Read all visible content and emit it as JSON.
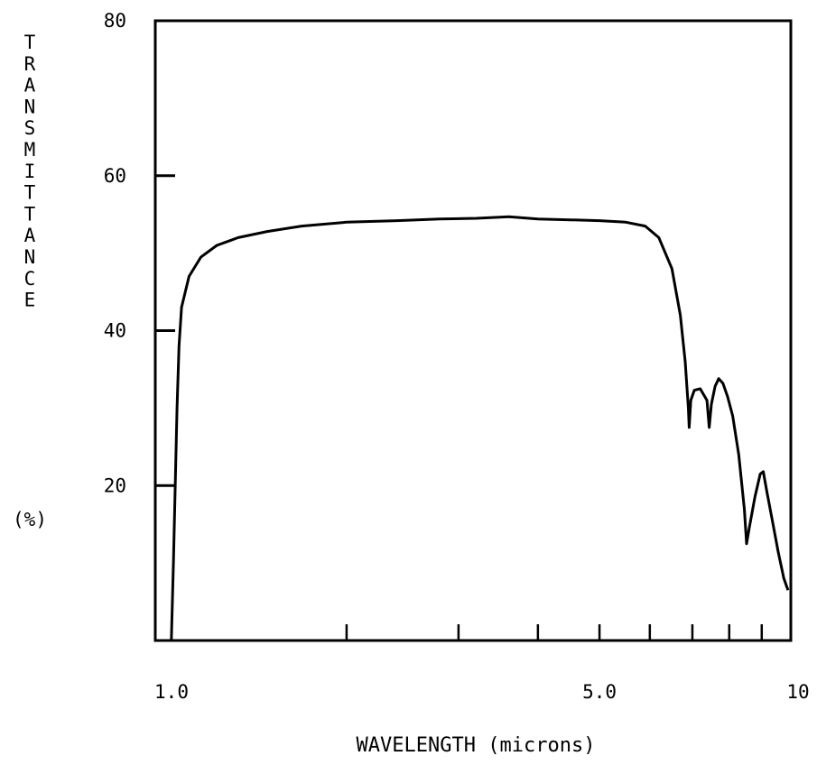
{
  "chart_data": {
    "type": "line",
    "title": "",
    "xlabel": "WAVELENGTH (microns)",
    "ylabel": "TRANSMITTANCE",
    "ylabel_unit": "(%)",
    "x_scale": "log",
    "xlim": [
      1.0,
      10
    ],
    "ylim": [
      0,
      80
    ],
    "x_ticks": [
      1.0,
      2.0,
      3.0,
      4.0,
      5.0,
      6.0,
      7.0,
      8.0,
      9.0,
      10
    ],
    "x_tick_labels": [
      {
        "value": 1.0,
        "label": "1.0"
      },
      {
        "value": 5.0,
        "label": "5.0"
      },
      {
        "value": 10,
        "label": "10"
      }
    ],
    "y_tick_labels": [
      {
        "value": 20,
        "label": "20"
      },
      {
        "value": 40,
        "label": "40"
      },
      {
        "value": 60,
        "label": "60"
      },
      {
        "value": 80,
        "label": "80"
      }
    ],
    "grid": false,
    "series": [
      {
        "values": [
          [
            1.06,
            0
          ],
          [
            1.068,
            10
          ],
          [
            1.075,
            20
          ],
          [
            1.082,
            30
          ],
          [
            1.09,
            38
          ],
          [
            1.1,
            43
          ],
          [
            1.13,
            47
          ],
          [
            1.18,
            49.5
          ],
          [
            1.25,
            51
          ],
          [
            1.35,
            52
          ],
          [
            1.5,
            52.8
          ],
          [
            1.7,
            53.5
          ],
          [
            2.0,
            54
          ],
          [
            2.4,
            54.2
          ],
          [
            2.8,
            54.4
          ],
          [
            3.2,
            54.5
          ],
          [
            3.6,
            54.7
          ],
          [
            4.0,
            54.4
          ],
          [
            4.5,
            54.3
          ],
          [
            5.0,
            54.2
          ],
          [
            5.5,
            54.0
          ],
          [
            5.9,
            53.5
          ],
          [
            6.2,
            52
          ],
          [
            6.5,
            48
          ],
          [
            6.7,
            42
          ],
          [
            6.82,
            36
          ],
          [
            6.9,
            30
          ],
          [
            6.92,
            27.5
          ],
          [
            6.96,
            31
          ],
          [
            7.05,
            32.3
          ],
          [
            7.2,
            32.5
          ],
          [
            7.38,
            31
          ],
          [
            7.44,
            27.5
          ],
          [
            7.5,
            30.5
          ],
          [
            7.6,
            32.8
          ],
          [
            7.7,
            33.8
          ],
          [
            7.82,
            33.2
          ],
          [
            7.95,
            31.5
          ],
          [
            8.1,
            29
          ],
          [
            8.28,
            24
          ],
          [
            8.45,
            17
          ],
          [
            8.52,
            12.5
          ],
          [
            8.6,
            14.5
          ],
          [
            8.78,
            18.5
          ],
          [
            8.95,
            21.5
          ],
          [
            9.05,
            21.8
          ],
          [
            9.18,
            19
          ],
          [
            9.35,
            15.5
          ],
          [
            9.55,
            11.5
          ],
          [
            9.75,
            8
          ],
          [
            9.9,
            6.5
          ]
        ]
      }
    ]
  }
}
